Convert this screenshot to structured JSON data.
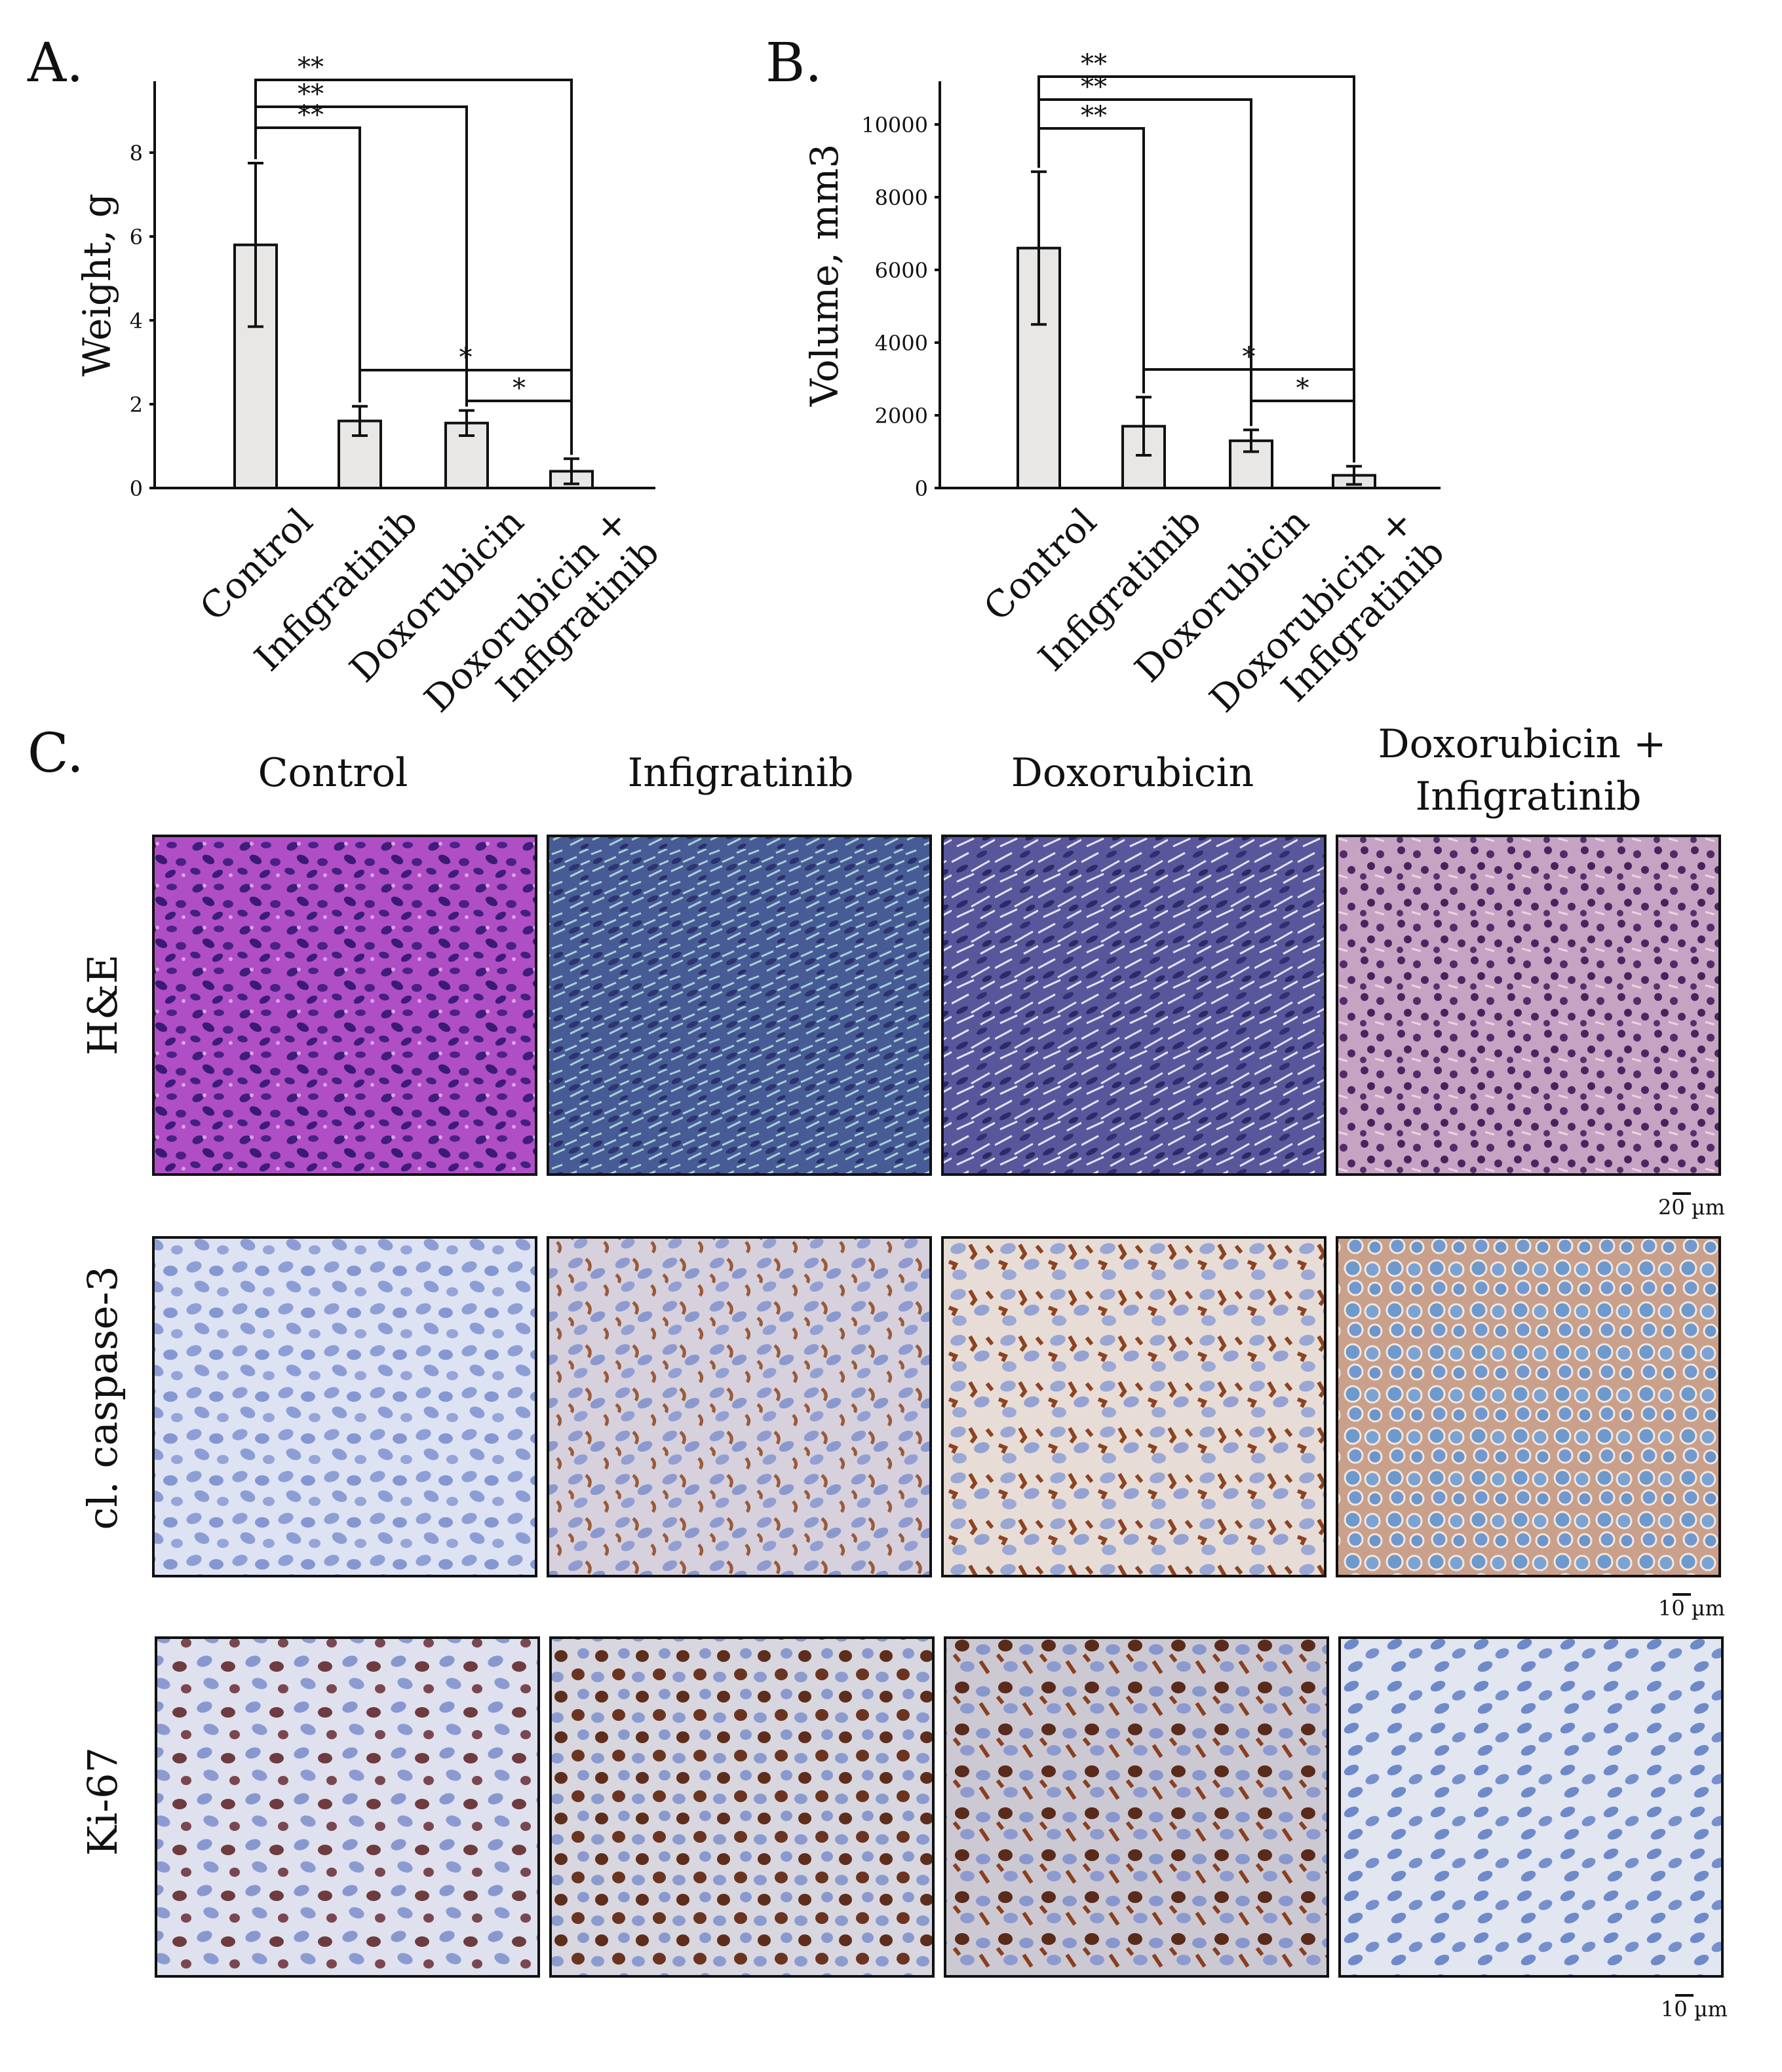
{
  "panels": {
    "A": "A.",
    "B": "B.",
    "C": "C."
  },
  "colors": {
    "bar_fill": "#e9e6e6",
    "ink": "#111111",
    "he_control": "#b34fc8",
    "he_infig": "#4a5e9a",
    "he_doxo": "#5a559a",
    "he_combo": "#8d5a8f",
    "ihc_blue": "#8d9fd4",
    "ihc_brown": "#8c4a2a",
    "ki_nucleus": "#6a3a3c"
  },
  "chart_data": [
    {
      "panel": "A.",
      "type": "bar",
      "ylabel": "Weight, g",
      "xlabel": "",
      "categories": [
        "Control",
        "Infigratinib",
        "Doxorubicin",
        "Doxorubicin +\nInfigratinib"
      ],
      "values": [
        5.8,
        1.6,
        1.55,
        0.4
      ],
      "errors": [
        1.95,
        0.35,
        0.3,
        0.3
      ],
      "yticks": [
        0,
        2,
        4,
        6,
        8
      ],
      "ylim": [
        0,
        9.5
      ],
      "grid": false,
      "significance": [
        {
          "from": 0,
          "to": 1,
          "label": "**"
        },
        {
          "from": 0,
          "to": 2,
          "label": "**"
        },
        {
          "from": 0,
          "to": 3,
          "label": "**"
        },
        {
          "from": 1,
          "to": 3,
          "label": "*"
        },
        {
          "from": 2,
          "to": 3,
          "label": "*"
        }
      ]
    },
    {
      "panel": "B.",
      "type": "bar",
      "ylabel": "Volume, mm3",
      "xlabel": "",
      "categories": [
        "Control",
        "Infigratinib",
        "Doxorubicin",
        "Doxorubicin +\nInfigratinib"
      ],
      "values": [
        6600,
        1700,
        1300,
        350
      ],
      "errors": [
        2100,
        800,
        300,
        250
      ],
      "yticks": [
        0,
        2000,
        4000,
        6000,
        8000,
        10000
      ],
      "ylim": [
        0,
        11000
      ],
      "grid": false,
      "significance": [
        {
          "from": 0,
          "to": 1,
          "label": "**"
        },
        {
          "from": 0,
          "to": 2,
          "label": "**"
        },
        {
          "from": 0,
          "to": 3,
          "label": "**"
        },
        {
          "from": 1,
          "to": 3,
          "label": "*"
        },
        {
          "from": 2,
          "to": 3,
          "label": "*"
        }
      ]
    }
  ],
  "micrographs": {
    "columns": [
      "Control",
      "Infigratinib",
      "Doxorubicin",
      "Doxorubicin +\nInfigratinib"
    ],
    "rows": [
      {
        "label": "H&E",
        "scale_bar": "20 µm"
      },
      {
        "label": "cl. caspase-3",
        "scale_bar": "10 µm"
      },
      {
        "label": "Ki-67",
        "scale_bar": "10 µm"
      }
    ]
  }
}
